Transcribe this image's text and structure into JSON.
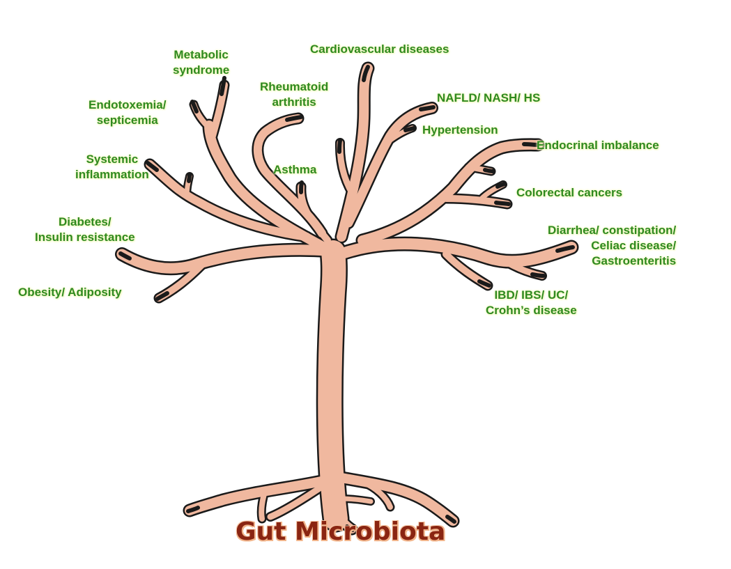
{
  "title": "Gut Microbiota",
  "colors": {
    "label_text": "#2f8a1f",
    "title_text": "#8a2512",
    "tree_fill": "#f0b89f",
    "tree_outline": "#1a1a1a"
  },
  "labels": {
    "metabolic_syndrome": [
      "Metabolic",
      "syndrome"
    ],
    "cardiovascular_diseases": [
      "Cardiovascular diseases"
    ],
    "rheumatoid_arthritis": [
      "Rheumatoid",
      "arthritis"
    ],
    "endotoxemia_septicemia": [
      "Endotoxemia/",
      "septicemia"
    ],
    "nafld_nash_hs": [
      "NAFLD/ NASH/ HS"
    ],
    "hypertension": [
      "Hypertension"
    ],
    "endocrinal_imbalance": [
      "Endocrinal imbalance"
    ],
    "systemic_inflammation": [
      "Systemic",
      "inflammation"
    ],
    "asthma": [
      "Asthma"
    ],
    "colorectal_cancers": [
      "Colorectal cancers"
    ],
    "diabetes_insulin_resistance": [
      "Diabetes/",
      "Insulin resistance"
    ],
    "diarrhea_celiac_gastroenteritis": [
      "Diarrhea/ constipation/",
      "Celiac disease/",
      "Gastroenteritis"
    ],
    "obesity_adiposity": [
      "Obesity/ Adiposity"
    ],
    "ibd_ibs_uc_crohns": [
      "IBD/ IBS/ UC/",
      "Crohn’s disease"
    ]
  }
}
